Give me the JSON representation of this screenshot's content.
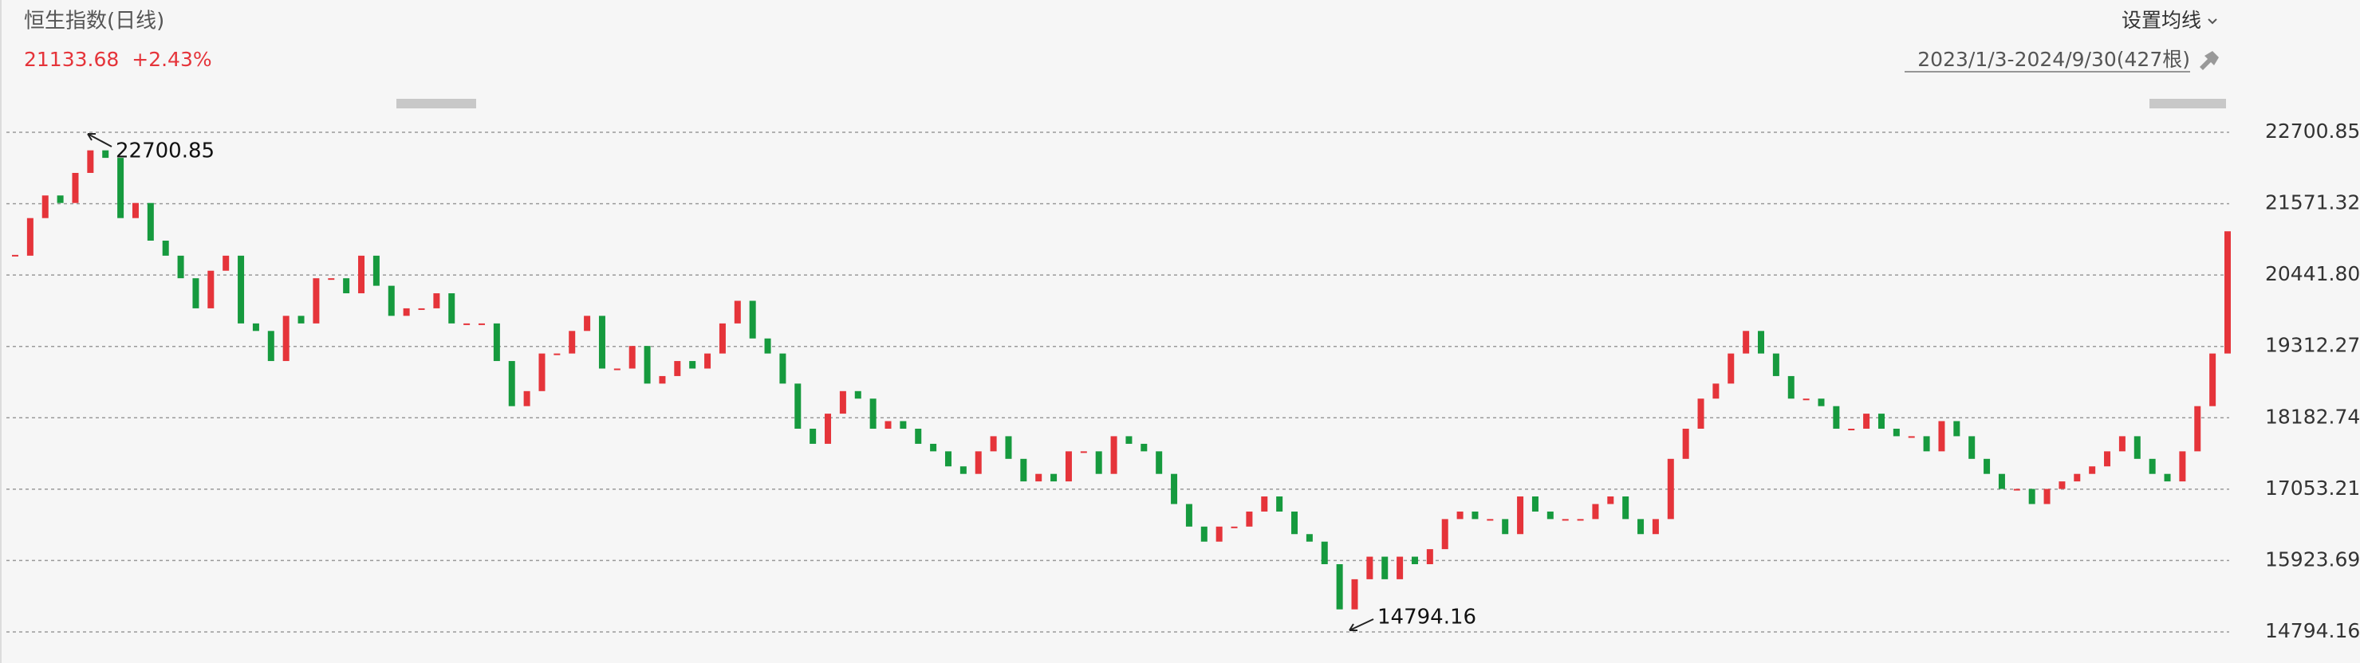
{
  "chart_data": {
    "type": "candlestick",
    "title": "恒生指数(日线)",
    "last_price": "21133.68",
    "change": "+2.43%",
    "ma_button": "设置均线",
    "range_label": "2023/1/3-2024/9/30(427根)",
    "annotations": [
      {
        "text": "22700.85"
      },
      {
        "text": "14794.16"
      }
    ],
    "up_color": "#e5343a",
    "down_color": "#169a3e",
    "grid": true,
    "ylim": [
      14794.16,
      22700.85
    ],
    "yticks": [
      14794.16,
      15923.69,
      17053.21,
      18182.74,
      19312.27,
      {
        "value": 20441.8,
        "label": "20441.80"
      },
      21571.32,
      22700.85
    ],
    "values": [
      20748,
      21343,
      21701,
      21582,
      22058,
      22415,
      22296,
      21343,
      21582,
      20986,
      20748,
      20391,
      19915,
      20510,
      20748,
      19676,
      19557,
      19081,
      19796,
      19676,
      20391,
      20391,
      20153,
      20748,
      20272,
      19796,
      19915,
      19915,
      20153,
      19676,
      19676,
      19676,
      19081,
      18367,
      18605,
      19200,
      19200,
      19557,
      19796,
      18962,
      18962,
      19319,
      18724,
      18843,
      19081,
      18962,
      19200,
      19676,
      20034,
      19438,
      19200,
      18724,
      18010,
      17771,
      18248,
      18605,
      18486,
      18010,
      18130,
      18010,
      17771,
      17652,
      17414,
      17295,
      17652,
      17891,
      17533,
      17176,
      17295,
      17176,
      17652,
      17652,
      17295,
      17891,
      17771,
      17652,
      17295,
      16818,
      16461,
      16223,
      16461,
      16461,
      16699,
      16938,
      16699,
      16342,
      16223,
      15866,
      15151,
      15628,
      15985,
      15628,
      15985,
      15866,
      16104,
      16580,
      16699,
      16580,
      16580,
      16342,
      16938,
      16699,
      16580,
      16580,
      16580,
      16818,
      16938,
      16580,
      16342,
      16580,
      17533,
      18010,
      18486,
      18724,
      19200,
      19557,
      19200,
      18843,
      18486,
      18486,
      18367,
      18010,
      18010,
      18248,
      18010,
      17891,
      17891,
      17652,
      18130,
      17891,
      17533,
      17295,
      17057,
      17057,
      16818,
      17057,
      17176,
      17295,
      17414,
      17652,
      17891,
      17533,
      17295,
      17176,
      17652,
      18367,
      19200,
      21134
    ]
  }
}
